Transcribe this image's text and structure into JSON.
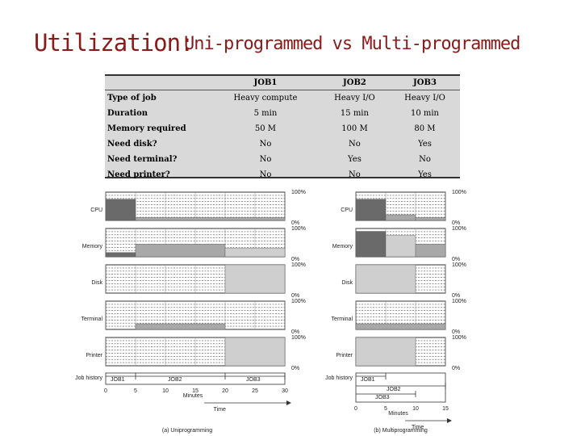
{
  "title": {
    "main": "Utilization:",
    "sub": "Uni-programmed  vs  Multi-programmed"
  },
  "table": {
    "headers": [
      "",
      "JOB1",
      "JOB2",
      "JOB3"
    ],
    "rows": [
      {
        "label": "Type of job",
        "values": [
          "Heavy compute",
          "Heavy I/O",
          "Heavy I/O"
        ]
      },
      {
        "label": "Duration",
        "values": [
          "5 min",
          "15 min",
          "10 min"
        ]
      },
      {
        "label": "Memory required",
        "values": [
          "50 M",
          "100 M",
          "80 M"
        ]
      },
      {
        "label": "Need disk?",
        "values": [
          "No",
          "No",
          "Yes"
        ]
      },
      {
        "label": "Need terminal?",
        "values": [
          "No",
          "Yes",
          "No"
        ]
      },
      {
        "label": "Need printer?",
        "values": [
          "No",
          "No",
          "Yes"
        ]
      }
    ]
  },
  "resources": [
    "CPU",
    "Memory",
    "Disk",
    "Terminal",
    "Printer"
  ],
  "pct_top": "100%",
  "pct_bottom": "0%",
  "job_history_label": "Job history",
  "job_labels": [
    "JOB1",
    "JOB2",
    "JOB3"
  ],
  "axis_label": "Minutes",
  "time_label": "Time",
  "uni": {
    "caption": "(a) Uniprogramming",
    "ticks": [
      0,
      5,
      10,
      15,
      20,
      25,
      30
    ],
    "xmax": 30,
    "utilization": {
      "CPU": [
        {
          "start": 0,
          "end": 5,
          "level": 0.75,
          "shade": "#6a6a6a"
        },
        {
          "start": 5,
          "end": 30,
          "level": 0.1,
          "shade": "#a8a8a8"
        }
      ],
      "Memory": [
        {
          "start": 0,
          "end": 5,
          "level": 0.15,
          "shade": "#6a6a6a"
        },
        {
          "start": 5,
          "end": 20,
          "level": 0.45,
          "shade": "#a8a8a8"
        },
        {
          "start": 20,
          "end": 30,
          "level": 0.3,
          "shade": "#cfcfcf"
        }
      ],
      "Disk": [
        {
          "start": 20,
          "end": 30,
          "level": 1.0,
          "shade": "#cfcfcf"
        }
      ],
      "Terminal": [
        {
          "start": 5,
          "end": 20,
          "level": 0.2,
          "shade": "#a8a8a8"
        }
      ],
      "Printer": [
        {
          "start": 20,
          "end": 30,
          "level": 1.0,
          "shade": "#cfcfcf"
        }
      ]
    },
    "jobs": [
      {
        "name": "JOB1",
        "start": 0,
        "end": 5
      },
      {
        "name": "JOB2",
        "start": 5,
        "end": 20
      },
      {
        "name": "JOB3",
        "start": 20,
        "end": 30
      }
    ]
  },
  "multi": {
    "caption": "(b) Multiprogramming",
    "ticks": [
      0,
      5,
      10,
      15
    ],
    "xmax": 15,
    "utilization": {
      "CPU": [
        {
          "start": 0,
          "end": 5,
          "level": 0.75,
          "shade": "#6a6a6a"
        },
        {
          "start": 5,
          "end": 10,
          "level": 0.2,
          "shade": "#a8a8a8"
        },
        {
          "start": 10,
          "end": 15,
          "level": 0.1,
          "shade": "#a8a8a8"
        }
      ],
      "Memory": [
        {
          "start": 0,
          "end": 5,
          "level": 0.9,
          "shade": "#6a6a6a"
        },
        {
          "start": 5,
          "end": 10,
          "level": 0.75,
          "shade": "#cfcfcf"
        },
        {
          "start": 10,
          "end": 15,
          "level": 0.45,
          "shade": "#a8a8a8"
        }
      ],
      "Disk": [
        {
          "start": 0,
          "end": 10,
          "level": 1.0,
          "shade": "#cfcfcf"
        }
      ],
      "Terminal": [
        {
          "start": 0,
          "end": 15,
          "level": 0.2,
          "shade": "#a8a8a8"
        }
      ],
      "Printer": [
        {
          "start": 0,
          "end": 10,
          "level": 1.0,
          "shade": "#cfcfcf"
        }
      ]
    },
    "jobs": [
      {
        "name": "JOB1",
        "start": 0,
        "end": 5
      },
      {
        "name": "JOB2",
        "start": 0,
        "end": 15
      },
      {
        "name": "JOB3",
        "start": 0,
        "end": 10
      }
    ]
  },
  "colors": {
    "title": "#8b1a1a",
    "table_bg": "#d9d9d9"
  }
}
